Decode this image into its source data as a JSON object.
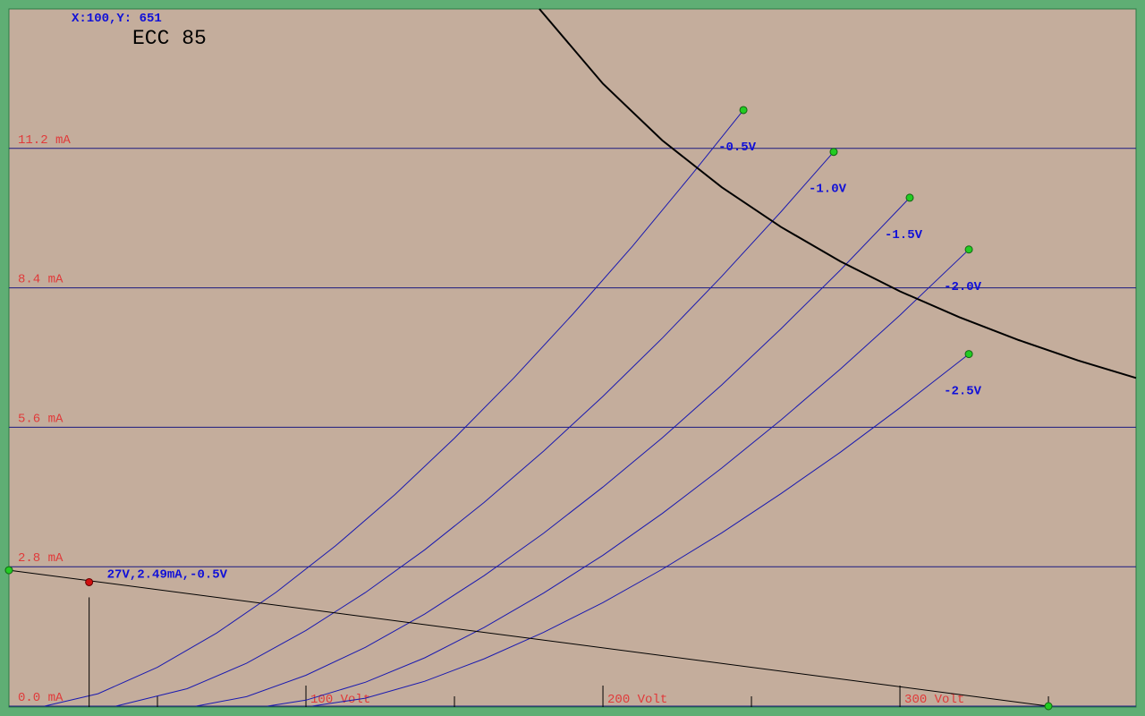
{
  "chart_data": {
    "type": "line",
    "title": "ECC 85",
    "cursor_readout": "X:100,Y: 651",
    "xlim": [
      0,
      379.5
    ],
    "ylim": [
      0,
      14
    ],
    "xticks": [
      {
        "value": 50,
        "label": null
      },
      {
        "value": 100,
        "label": "100 Volt"
      },
      {
        "value": 150,
        "label": null
      },
      {
        "value": 200,
        "label": "200 Volt"
      },
      {
        "value": 250,
        "label": null
      },
      {
        "value": 300,
        "label": "300 Volt"
      },
      {
        "value": 350,
        "label": null
      }
    ],
    "yticks": [
      {
        "value": 0,
        "label": "0.0 mA"
      },
      {
        "value": 2.8,
        "label": "2.8 mA"
      },
      {
        "value": 5.6,
        "label": "5.6 mA"
      },
      {
        "value": 8.4,
        "label": "8.4 mA"
      },
      {
        "value": 11.2,
        "label": "11.2 mA"
      }
    ],
    "grid": true,
    "series": [
      {
        "name": "-0.5V",
        "color": "#1a1ab0",
        "x": [
          12,
          30,
          50,
          70,
          90,
          110,
          130,
          150,
          170,
          190,
          210,
          230,
          247.3
        ],
        "values": [
          0,
          0.25,
          0.78,
          1.47,
          2.29,
          3.22,
          4.25,
          5.38,
          6.59,
          7.88,
          9.24,
          10.68,
          11.97
        ]
      },
      {
        "name": "-1.0V",
        "color": "#1a1ab0",
        "x": [
          36,
          60,
          80,
          100,
          120,
          140,
          160,
          180,
          200,
          220,
          240,
          260,
          277.7
        ],
        "values": [
          0,
          0.35,
          0.86,
          1.52,
          2.28,
          3.14,
          4.09,
          5.12,
          6.22,
          7.39,
          8.63,
          9.93,
          11.13
        ]
      },
      {
        "name": "-1.5V",
        "color": "#1a1ab0",
        "x": [
          63,
          80,
          100,
          120,
          140,
          160,
          180,
          200,
          220,
          240,
          260,
          280,
          303.3
        ],
        "values": [
          0,
          0.19,
          0.62,
          1.18,
          1.85,
          2.62,
          3.47,
          4.4,
          5.39,
          6.45,
          7.58,
          8.76,
          10.21
        ]
      },
      {
        "name": "-2.0V",
        "color": "#1a1ab0",
        "x": [
          87,
          100,
          120,
          140,
          160,
          180,
          200,
          220,
          240,
          260,
          280,
          300,
          323.2
        ],
        "values": [
          0,
          0.12,
          0.48,
          0.97,
          1.58,
          2.27,
          3.03,
          3.87,
          4.78,
          5.75,
          6.77,
          7.85,
          9.17
        ]
      },
      {
        "name": "-2.5V",
        "color": "#1a1ab0",
        "x": [
          102,
          120,
          140,
          160,
          180,
          200,
          220,
          240,
          260,
          280,
          300,
          323.2
        ],
        "values": [
          0,
          0.16,
          0.5,
          0.95,
          1.48,
          2.08,
          2.75,
          3.48,
          4.27,
          5.1,
          5.99,
          7.07
        ]
      }
    ],
    "load_line": {
      "color": "#000000",
      "x": [
        0,
        350
      ],
      "values": [
        2.73,
        0
      ]
    },
    "power_curve": {
      "color": "#000000",
      "x": [
        178.6,
        200,
        220,
        240,
        260,
        280,
        300,
        320,
        340,
        360,
        379.5
      ],
      "values": [
        14,
        12.5,
        11.36,
        10.42,
        9.62,
        8.93,
        8.33,
        7.81,
        7.35,
        6.94,
        6.59
      ]
    },
    "operating_point": {
      "x": 27,
      "y": 2.49,
      "label": "27V,2.49mA,-0.5V",
      "color": "#d01010"
    }
  }
}
